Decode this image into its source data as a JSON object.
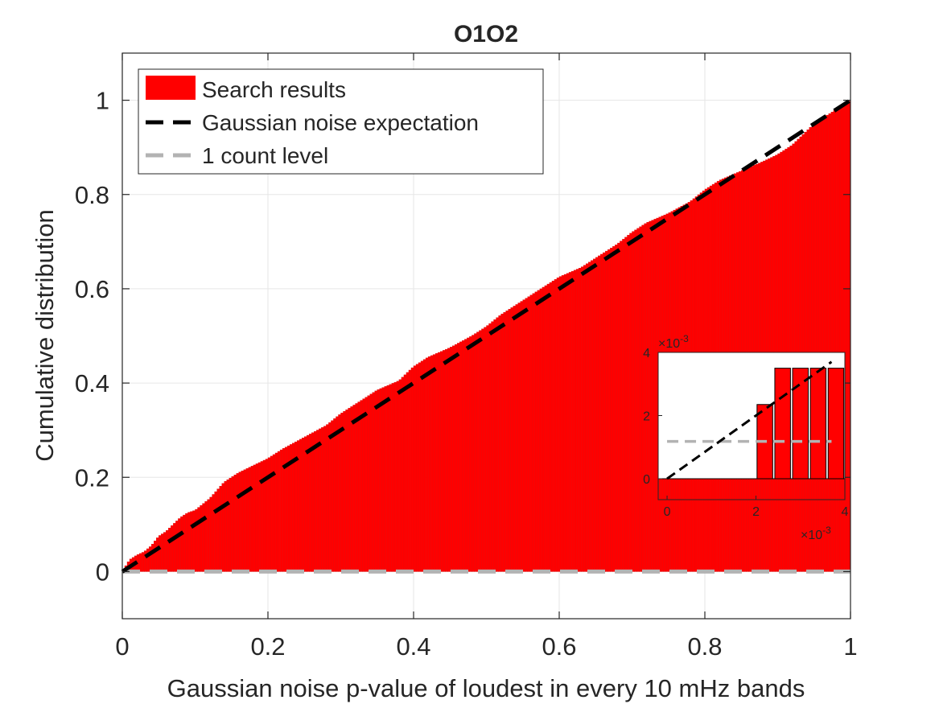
{
  "chart_data": [
    {
      "type": "area",
      "title": "O1O2",
      "xlabel": "Gaussian noise p-value of loudest in every 10 mHz bands",
      "ylabel": "Cumulative distribution",
      "xlim": [
        0,
        1
      ],
      "ylim": [
        -0.1,
        1.1
      ],
      "xticks": [
        0,
        0.2,
        0.4,
        0.6,
        0.8,
        1
      ],
      "xtick_labels": [
        "0",
        "0.2",
        "0.4",
        "0.6",
        "0.8",
        "1"
      ],
      "yticks": [
        0,
        0.2,
        0.4,
        0.6,
        0.8,
        1
      ],
      "ytick_labels": [
        "0",
        "0.2",
        "0.4",
        "0.6",
        "0.8",
        "1"
      ],
      "grid": true,
      "legend_position": "top-left",
      "series": [
        {
          "name": "Search results",
          "style": "bars",
          "color": "#ff0000",
          "x": [
            0,
            0.01,
            0.02,
            0.03,
            0.04,
            0.05,
            0.06,
            0.07,
            0.08,
            0.09,
            0.1,
            0.12,
            0.14,
            0.16,
            0.18,
            0.2,
            0.22,
            0.25,
            0.28,
            0.3,
            0.33,
            0.35,
            0.38,
            0.4,
            0.42,
            0.45,
            0.48,
            0.5,
            0.52,
            0.55,
            0.58,
            0.6,
            0.63,
            0.65,
            0.68,
            0.7,
            0.72,
            0.75,
            0.78,
            0.8,
            0.82,
            0.85,
            0.88,
            0.9,
            0.92,
            0.95,
            0.97,
            1.0
          ],
          "y": [
            0,
            0.025,
            0.035,
            0.042,
            0.055,
            0.075,
            0.085,
            0.1,
            0.115,
            0.125,
            0.13,
            0.155,
            0.19,
            0.21,
            0.225,
            0.24,
            0.26,
            0.285,
            0.31,
            0.335,
            0.365,
            0.385,
            0.405,
            0.435,
            0.455,
            0.475,
            0.5,
            0.52,
            0.545,
            0.575,
            0.605,
            0.625,
            0.645,
            0.665,
            0.695,
            0.72,
            0.74,
            0.76,
            0.785,
            0.81,
            0.83,
            0.85,
            0.87,
            0.885,
            0.905,
            0.95,
            0.97,
            1.0
          ]
        },
        {
          "name": "Gaussian noise expectation",
          "style": "dashed-line",
          "color": "#000000",
          "x": [
            0,
            1
          ],
          "y": [
            0,
            1
          ]
        },
        {
          "name": "1 count level",
          "style": "dashed-line",
          "color": "#b3b3b3",
          "x": [
            0,
            1
          ],
          "y": [
            0,
            0
          ]
        }
      ]
    },
    {
      "type": "bar",
      "role": "inset",
      "xlim": [
        -0.0002,
        0.004
      ],
      "ylim": [
        0,
        0.004
      ],
      "xticks": [
        0,
        0.002,
        0.004
      ],
      "xtick_labels": [
        "0",
        "2",
        "4"
      ],
      "yticks": [
        0,
        0.002,
        0.004
      ],
      "ytick_labels": [
        "0",
        "2",
        "4"
      ],
      "x_exponent_label": "×10",
      "x_exponent_power": "-3",
      "y_exponent_label": "×10",
      "y_exponent_power": "-3",
      "grid": false,
      "bars": [
        {
          "x": 0.0002,
          "value": 0
        },
        {
          "x": 0.0006,
          "value": 0
        },
        {
          "x": 0.001,
          "value": 0
        },
        {
          "x": 0.0014,
          "value": 0
        },
        {
          "x": 0.0018,
          "value": 0
        },
        {
          "x": 0.0022,
          "value": 0.00235
        },
        {
          "x": 0.0026,
          "value": 0.0035
        },
        {
          "x": 0.003,
          "value": 0.0035
        },
        {
          "x": 0.0034,
          "value": 0.0035
        },
        {
          "x": 0.0038,
          "value": 0.0035
        }
      ],
      "bar_color": "#ff0000",
      "expectation_line": {
        "x": [
          0,
          0.0037
        ],
        "y": [
          0,
          0.0037
        ],
        "color": "#000000"
      },
      "count_level_line": {
        "x": [
          0,
          0.0037
        ],
        "y": [
          0.00118,
          0.00118
        ],
        "color": "#b3b3b3"
      }
    }
  ]
}
